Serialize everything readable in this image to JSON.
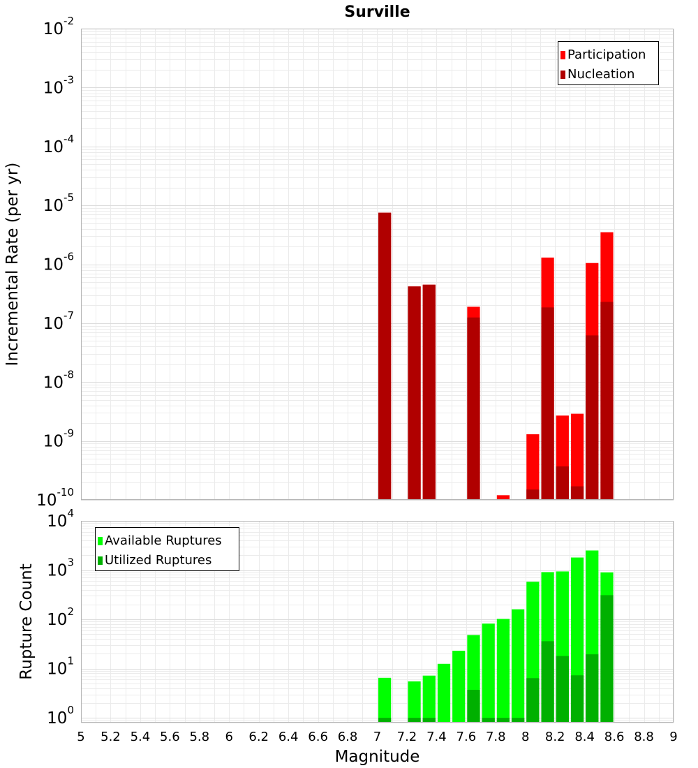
{
  "chart_data": [
    {
      "type": "bar",
      "title": "Surville",
      "ylabel": "Incremental Rate (per yr)",
      "xlabel": "",
      "xlim": [
        5,
        9
      ],
      "ylim": [
        1e-10,
        0.01
      ],
      "yscale": "log",
      "bar_width": 0.1,
      "yticks": [
        {
          "base": "10",
          "exp": "-2",
          "value": 0.01
        },
        {
          "base": "10",
          "exp": "-3",
          "value": 0.001
        },
        {
          "base": "10",
          "exp": "-4",
          "value": 0.0001
        },
        {
          "base": "10",
          "exp": "-5",
          "value": 1e-05
        },
        {
          "base": "10",
          "exp": "-6",
          "value": 1e-06
        },
        {
          "base": "10",
          "exp": "-7",
          "value": 1e-07
        },
        {
          "base": "10",
          "exp": "-8",
          "value": 1e-08
        },
        {
          "base": "10",
          "exp": "-9",
          "value": 1e-09
        },
        {
          "base": "10",
          "exp": "-10",
          "value": 1e-10
        }
      ],
      "legend": {
        "position": "top-right"
      },
      "grid": true,
      "series": [
        {
          "name": "Participation",
          "color": "#ff0000",
          "points": [
            {
              "x": 7.05,
              "y": 7.5e-06
            },
            {
              "x": 7.25,
              "y": 4.2e-07
            },
            {
              "x": 7.35,
              "y": 4.5e-07
            },
            {
              "x": 7.65,
              "y": 1.9e-07
            },
            {
              "x": 7.85,
              "y": 1.2e-10
            },
            {
              "x": 8.05,
              "y": 1.3e-09
            },
            {
              "x": 8.15,
              "y": 1.3e-06
            },
            {
              "x": 8.25,
              "y": 2.7e-09
            },
            {
              "x": 8.35,
              "y": 2.9e-09
            },
            {
              "x": 8.45,
              "y": 1.05e-06
            },
            {
              "x": 8.55,
              "y": 3.5e-06
            }
          ]
        },
        {
          "name": "Nucleation",
          "color": "#b00000",
          "points": [
            {
              "x": 7.05,
              "y": 7.5e-06
            },
            {
              "x": 7.25,
              "y": 4.2e-07
            },
            {
              "x": 7.35,
              "y": 4.5e-07
            },
            {
              "x": 7.65,
              "y": 1.25e-07
            },
            {
              "x": 8.05,
              "y": 1.5e-10
            },
            {
              "x": 8.15,
              "y": 1.85e-07
            },
            {
              "x": 8.25,
              "y": 3.7e-10
            },
            {
              "x": 8.35,
              "y": 1.7e-10
            },
            {
              "x": 8.45,
              "y": 6.2e-08
            },
            {
              "x": 8.55,
              "y": 2.3e-07
            }
          ]
        }
      ]
    },
    {
      "type": "bar",
      "title": "",
      "ylabel": "Rupture Count",
      "xlabel": "Magnitude",
      "xlim": [
        5,
        9
      ],
      "ylim": [
        0.8,
        10000
      ],
      "yscale": "log",
      "bar_width": 0.1,
      "xticks": [
        "5",
        "5.2",
        "5.4",
        "5.6",
        "5.8",
        "6",
        "6.2",
        "6.4",
        "6.6",
        "6.8",
        "7",
        "7.2",
        "7.4",
        "7.6",
        "7.8",
        "8",
        "8.2",
        "8.4",
        "8.6",
        "8.8",
        "9"
      ],
      "yticks": [
        {
          "base": "10",
          "exp": "4",
          "value": 10000
        },
        {
          "base": "10",
          "exp": "3",
          "value": 1000
        },
        {
          "base": "10",
          "exp": "2",
          "value": 100
        },
        {
          "base": "10",
          "exp": "1",
          "value": 10
        },
        {
          "base": "10",
          "exp": "0",
          "value": 1
        }
      ],
      "legend": {
        "position": "top-left"
      },
      "grid": true,
      "series": [
        {
          "name": "Available Ruptures",
          "color": "#00ff00",
          "points": [
            {
              "x": 7.05,
              "y": 6.5
            },
            {
              "x": 7.25,
              "y": 5.5
            },
            {
              "x": 7.35,
              "y": 7.2
            },
            {
              "x": 7.45,
              "y": 12.5
            },
            {
              "x": 7.55,
              "y": 23
            },
            {
              "x": 7.65,
              "y": 48
            },
            {
              "x": 7.75,
              "y": 82
            },
            {
              "x": 7.85,
              "y": 102
            },
            {
              "x": 7.95,
              "y": 160
            },
            {
              "x": 8.05,
              "y": 580
            },
            {
              "x": 8.15,
              "y": 910
            },
            {
              "x": 8.25,
              "y": 940
            },
            {
              "x": 8.35,
              "y": 1800
            },
            {
              "x": 8.45,
              "y": 2500
            },
            {
              "x": 8.55,
              "y": 900
            }
          ]
        },
        {
          "name": "Utilized Ruptures",
          "color": "#00b000",
          "points": [
            {
              "x": 7.05,
              "y": 1
            },
            {
              "x": 7.25,
              "y": 1
            },
            {
              "x": 7.35,
              "y": 1
            },
            {
              "x": 7.65,
              "y": 3.7
            },
            {
              "x": 7.75,
              "y": 1
            },
            {
              "x": 7.85,
              "y": 1
            },
            {
              "x": 7.95,
              "y": 1
            },
            {
              "x": 8.05,
              "y": 6.4
            },
            {
              "x": 8.15,
              "y": 36
            },
            {
              "x": 8.25,
              "y": 18
            },
            {
              "x": 8.35,
              "y": 7.3
            },
            {
              "x": 8.45,
              "y": 19.5
            },
            {
              "x": 8.55,
              "y": 310
            }
          ]
        }
      ]
    }
  ]
}
